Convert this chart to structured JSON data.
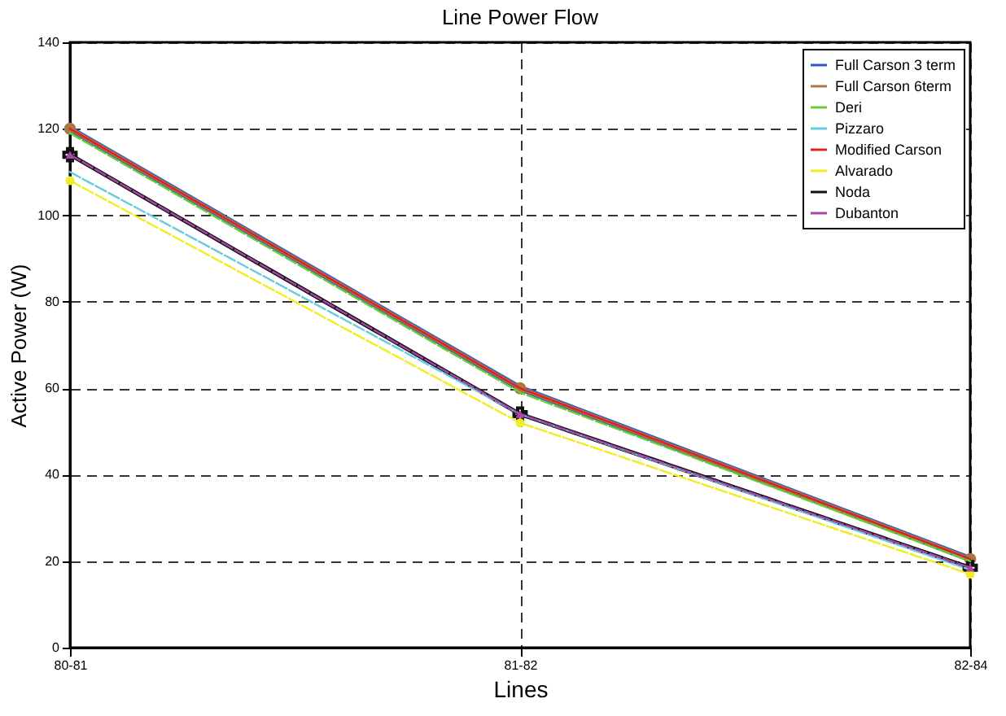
{
  "chart_data": {
    "type": "line",
    "title": "Line Power Flow",
    "xlabel": "Lines",
    "ylabel": "Active Power (W)",
    "categories": [
      "80-81",
      "81-82",
      "82-84"
    ],
    "ylim": [
      0,
      140
    ],
    "yticks": [
      0,
      20,
      40,
      60,
      80,
      100,
      120,
      140
    ],
    "grid": true,
    "legend": "top right",
    "series": [
      {
        "name": "Full Carson 3 term",
        "color": "#3355cc",
        "values": [
          120,
          60,
          20.5
        ],
        "line_style": "solid",
        "marker": "none"
      },
      {
        "name": "Full Carson 6term",
        "color": "#aa7744",
        "values": [
          120,
          60,
          20.5
        ],
        "line_style": "solid",
        "marker": "circle"
      },
      {
        "name": "Deri",
        "color": "#66cc33",
        "values": [
          119,
          59,
          20
        ],
        "line_style": "dashed",
        "marker": "none"
      },
      {
        "name": "Pizzaro",
        "color": "#66ccdd",
        "values": [
          110,
          54,
          18
        ],
        "line_style": "dashed",
        "marker": "none"
      },
      {
        "name": "Modified Carson",
        "color": "#dd2222",
        "values": [
          120,
          60,
          20.5
        ],
        "line_style": "solid",
        "marker": "none"
      },
      {
        "name": "Alvarado",
        "color": "#eeee22",
        "values": [
          108,
          52,
          17
        ],
        "line_style": "dashed",
        "marker": "circle"
      },
      {
        "name": "Noda",
        "color": "#111111",
        "values": [
          114,
          54,
          18.5
        ],
        "line_style": "dashed",
        "marker": "cross"
      },
      {
        "name": "Dubanton",
        "color": "#aa44aa",
        "values": [
          114,
          54,
          18.5
        ],
        "line_style": "dashed",
        "marker": "triangle"
      }
    ]
  }
}
